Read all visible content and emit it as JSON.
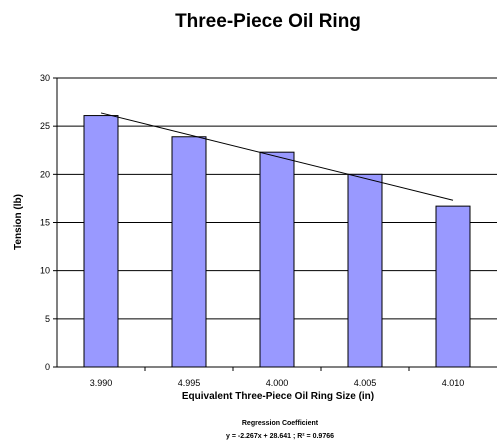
{
  "chart_data": {
    "type": "bar",
    "title": "Three-Piece Oil Ring",
    "xlabel": "Equivalent Three-Piece Oil Ring  Size (in)",
    "ylabel": "Tension (lb)",
    "categories": [
      "3.990",
      "4.995",
      "4.000",
      "4.005",
      "4.010"
    ],
    "values": [
      26.1,
      23.9,
      22.3,
      20.0,
      16.7
    ],
    "ylim": [
      0,
      30
    ],
    "yticks": [
      0,
      5,
      10,
      15,
      20,
      25,
      30
    ],
    "grid": true,
    "bar_color": "#9999ff",
    "bar_stroke": "#000000",
    "trendline": {
      "type": "linear",
      "slope": -2.267,
      "intercept": 28.641,
      "r2": 0.9766
    },
    "annotation": {
      "heading": "Regression Coefficient",
      "equation": "y = -2.267x + 28.641 ; R² = 0.9766"
    }
  }
}
